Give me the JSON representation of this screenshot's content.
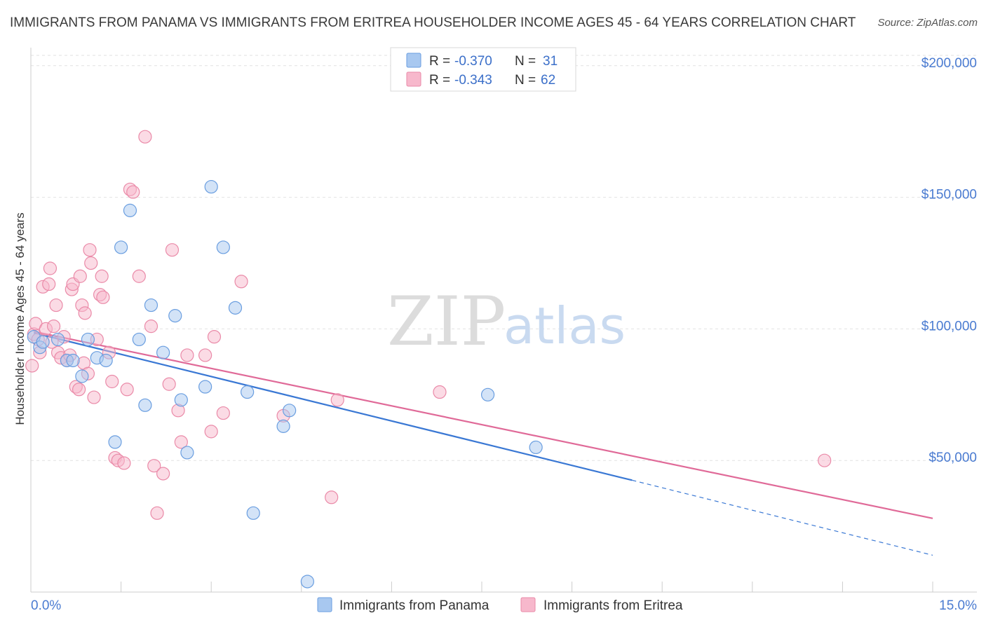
{
  "title": "IMMIGRANTS FROM PANAMA VS IMMIGRANTS FROM ERITREA HOUSEHOLDER INCOME AGES 45 - 64 YEARS CORRELATION CHART",
  "source": "Source: ZipAtlas.com",
  "watermark": {
    "zip": "ZIP",
    "atlas": "atlas"
  },
  "colors": {
    "panama_fill": "#a8c8f0",
    "panama_stroke": "#6a9ee0",
    "panama_line": "#3a78d4",
    "eritrea_fill": "#f7b8cc",
    "eritrea_stroke": "#ea8aa8",
    "eritrea_line": "#e06a98",
    "tick_label": "#4a7bd1"
  },
  "legend": {
    "panama": {
      "r_label": "R =",
      "r_value": "-0.370",
      "n_label": "N =",
      "n_value": "31"
    },
    "eritrea": {
      "r_label": "R =",
      "r_value": "-0.343",
      "n_label": "N =",
      "n_value": "62"
    }
  },
  "chart_data": {
    "type": "scatter",
    "title": "IMMIGRANTS FROM PANAMA VS IMMIGRANTS FROM ERITREA HOUSEHOLDER INCOME AGES 45 - 64 YEARS CORRELATION CHART",
    "xlabel": "",
    "ylabel": "Householder Income Ages 45 - 64 years",
    "xlim": [
      0,
      15
    ],
    "ylim": [
      0,
      205000
    ],
    "x_tick_labels": [
      "0.0%",
      "15.0%"
    ],
    "y_ticks": [
      50000,
      100000,
      150000,
      200000
    ],
    "y_tick_labels": [
      "$50,000",
      "$100,000",
      "$150,000",
      "$200,000"
    ],
    "grid": true,
    "legend_position": "top-center",
    "series": [
      {
        "name": "Immigrants from Panama",
        "r": -0.37,
        "n": 31,
        "trend": {
          "x0": 0.05,
          "y0": 98500,
          "x1": 10.0,
          "y1": 42500,
          "dashed_to_x": 15.0,
          "dashed_to_y": 14000
        },
        "points": [
          [
            0.05,
            97000
          ],
          [
            0.15,
            93000
          ],
          [
            0.2,
            95000
          ],
          [
            0.45,
            96000
          ],
          [
            0.6,
            88000
          ],
          [
            0.7,
            88000
          ],
          [
            0.85,
            82000
          ],
          [
            0.95,
            96000
          ],
          [
            1.1,
            89000
          ],
          [
            1.25,
            88000
          ],
          [
            1.4,
            57000
          ],
          [
            1.5,
            131000
          ],
          [
            1.65,
            145000
          ],
          [
            1.8,
            96000
          ],
          [
            1.9,
            71000
          ],
          [
            2.0,
            109000
          ],
          [
            2.2,
            91000
          ],
          [
            2.4,
            105000
          ],
          [
            2.5,
            73000
          ],
          [
            2.6,
            53000
          ],
          [
            2.9,
            78000
          ],
          [
            3.0,
            154000
          ],
          [
            3.2,
            131000
          ],
          [
            3.4,
            108000
          ],
          [
            3.6,
            76000
          ],
          [
            3.7,
            30000
          ],
          [
            4.2,
            63000
          ],
          [
            4.3,
            69000
          ],
          [
            4.6,
            4000
          ],
          [
            7.6,
            75000
          ],
          [
            8.4,
            55000
          ]
        ]
      },
      {
        "name": "Immigrants from Eritrea",
        "r": -0.343,
        "n": 62,
        "trend": {
          "x0": 0.05,
          "y0": 99000,
          "x1": 15.0,
          "y1": 28000
        },
        "points": [
          [
            0.02,
            86000
          ],
          [
            0.05,
            98000
          ],
          [
            0.08,
            102000
          ],
          [
            0.12,
            96000
          ],
          [
            0.15,
            91000
          ],
          [
            0.2,
            116000
          ],
          [
            0.25,
            100000
          ],
          [
            0.3,
            117000
          ],
          [
            0.32,
            123000
          ],
          [
            0.38,
            101000
          ],
          [
            0.42,
            109000
          ],
          [
            0.45,
            91000
          ],
          [
            0.5,
            89000
          ],
          [
            0.55,
            97000
          ],
          [
            0.6,
            88000
          ],
          [
            0.65,
            90000
          ],
          [
            0.68,
            115000
          ],
          [
            0.7,
            117000
          ],
          [
            0.75,
            78000
          ],
          [
            0.8,
            77000
          ],
          [
            0.82,
            120000
          ],
          [
            0.85,
            109000
          ],
          [
            0.88,
            87000
          ],
          [
            0.9,
            106000
          ],
          [
            0.95,
            83000
          ],
          [
            0.98,
            130000
          ],
          [
            1.0,
            125000
          ],
          [
            1.05,
            74000
          ],
          [
            1.1,
            96000
          ],
          [
            1.15,
            113000
          ],
          [
            1.18,
            120000
          ],
          [
            1.2,
            112000
          ],
          [
            1.3,
            91000
          ],
          [
            1.35,
            80000
          ],
          [
            1.4,
            51000
          ],
          [
            1.45,
            50000
          ],
          [
            1.55,
            49000
          ],
          [
            1.6,
            77000
          ],
          [
            1.65,
            153000
          ],
          [
            1.7,
            152000
          ],
          [
            1.8,
            120000
          ],
          [
            1.9,
            173000
          ],
          [
            2.0,
            101000
          ],
          [
            2.05,
            48000
          ],
          [
            2.1,
            30000
          ],
          [
            2.2,
            45000
          ],
          [
            2.3,
            79000
          ],
          [
            2.35,
            130000
          ],
          [
            2.45,
            69000
          ],
          [
            2.5,
            57000
          ],
          [
            2.6,
            90000
          ],
          [
            2.9,
            90000
          ],
          [
            3.0,
            61000
          ],
          [
            3.05,
            97000
          ],
          [
            3.2,
            68000
          ],
          [
            3.5,
            118000
          ],
          [
            4.2,
            67000
          ],
          [
            5.0,
            36000
          ],
          [
            5.1,
            73000
          ],
          [
            6.8,
            76000
          ],
          [
            13.2,
            50000
          ],
          [
            0.35,
            95000
          ]
        ]
      }
    ]
  },
  "bottom_legend": {
    "panama_label": "Immigrants from Panama",
    "eritrea_label": "Immigrants from Eritrea"
  }
}
